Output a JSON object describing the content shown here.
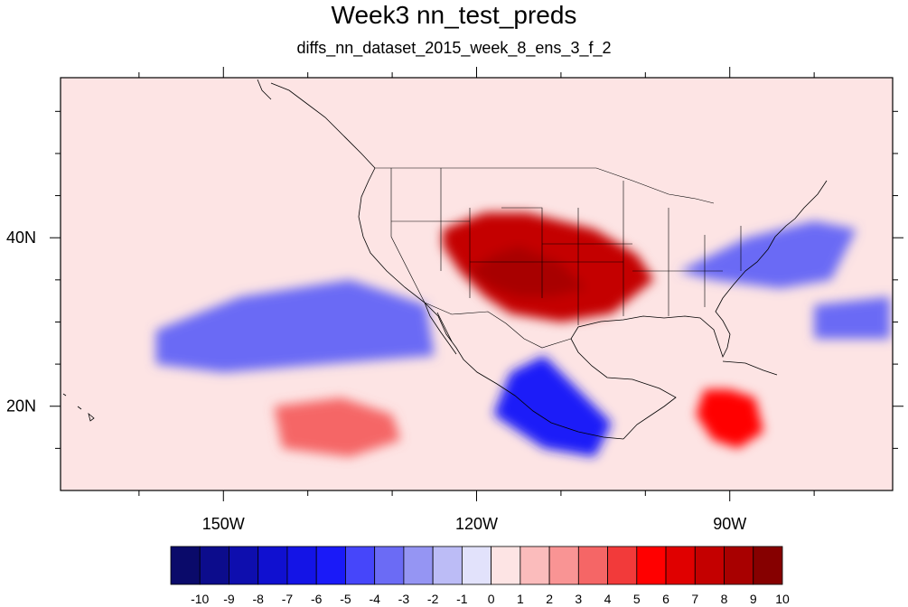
{
  "title": "Week3 nn_test_preds",
  "subtitle": "diffs_nn_dataset_2015_week_8_ens_3_f_2",
  "axes": {
    "lon_range": [
      -169.3,
      -70.7
    ],
    "lat_range": [
      10,
      59
    ],
    "x_ticks": [
      {
        "lon": -150,
        "label": "150W"
      },
      {
        "lon": -120,
        "label": "120W"
      },
      {
        "lon": -90,
        "label": "90W"
      }
    ],
    "y_ticks": [
      {
        "lat": 20,
        "label": "20N"
      },
      {
        "lat": 40,
        "label": "40N"
      }
    ]
  },
  "colorbar": {
    "labels": [
      "-10",
      "-9",
      "-8",
      "-7",
      "-6",
      "-5",
      "-4",
      "-3",
      "-2",
      "-1",
      "0",
      "1",
      "2",
      "3",
      "4",
      "5",
      "6",
      "7",
      "8",
      "9",
      "10"
    ],
    "colors": [
      "#0a0a6a",
      "#0c0c8c",
      "#0e0eae",
      "#1010d0",
      "#1414e6",
      "#1a1af8",
      "#4646fa",
      "#6b6bf5",
      "#9595f3",
      "#bcbcf6",
      "#e2e2fb",
      "#fde4e4",
      "#fbbcbc",
      "#f99494",
      "#f56666",
      "#f23a3a",
      "#ff0000",
      "#e00000",
      "#c40000",
      "#a80000",
      "#860000"
    ]
  },
  "background_color": "#fde4e4",
  "anomaly_regions": [
    {
      "name": "southwest-us-warm",
      "value": 8,
      "outline": [
        [
          -124,
          41
        ],
        [
          -119,
          43
        ],
        [
          -114,
          43
        ],
        [
          -106,
          41
        ],
        [
          -101,
          38
        ],
        [
          -99,
          35
        ],
        [
          -104,
          31
        ],
        [
          -110,
          30
        ],
        [
          -116,
          31
        ],
        [
          -119,
          33
        ],
        [
          -122,
          36
        ],
        [
          -124,
          39
        ]
      ]
    },
    {
      "name": "southwest-us-core",
      "value": 9,
      "outline": [
        [
          -121,
          36
        ],
        [
          -118,
          38
        ],
        [
          -115,
          39
        ],
        [
          -110,
          37
        ],
        [
          -107,
          34
        ],
        [
          -111,
          33
        ],
        [
          -115,
          33
        ],
        [
          -118,
          34
        ]
      ]
    },
    {
      "name": "southern-mexico-warm",
      "value": 6,
      "outline": [
        [
          -93,
          22
        ],
        [
          -90,
          22
        ],
        [
          -87,
          21
        ],
        [
          -86,
          17
        ],
        [
          -89,
          15
        ],
        [
          -92,
          16
        ],
        [
          -94,
          19
        ]
      ]
    },
    {
      "name": "central-pacific-warm",
      "value": 4,
      "outline": [
        [
          -144,
          20
        ],
        [
          -136,
          21
        ],
        [
          -130,
          19
        ],
        [
          -129,
          16
        ],
        [
          -135,
          14
        ],
        [
          -143,
          15
        ]
      ]
    },
    {
      "name": "eastern-us-cool",
      "value": -3,
      "outline": [
        [
          -96,
          36
        ],
        [
          -88,
          40
        ],
        [
          -80,
          42
        ],
        [
          -75,
          41
        ],
        [
          -78,
          35
        ],
        [
          -84,
          34
        ],
        [
          -92,
          35
        ]
      ]
    },
    {
      "name": "west-atlantic-cool",
      "value": -3,
      "outline": [
        [
          -80,
          32
        ],
        [
          -71,
          33
        ],
        [
          -71,
          28
        ],
        [
          -80,
          28
        ]
      ]
    },
    {
      "name": "subtropical-pacific-cool",
      "value": -3,
      "outline": [
        [
          -158,
          29
        ],
        [
          -148,
          33
        ],
        [
          -135,
          35
        ],
        [
          -126,
          32
        ],
        [
          -125,
          26
        ],
        [
          -138,
          25
        ],
        [
          -150,
          24
        ],
        [
          -158,
          25
        ]
      ]
    },
    {
      "name": "baja-offshore-cool",
      "value": -5,
      "outline": [
        [
          -116,
          24
        ],
        [
          -112,
          26
        ],
        [
          -108,
          22
        ],
        [
          -104,
          18
        ],
        [
          -106,
          14
        ],
        [
          -112,
          15
        ],
        [
          -118,
          19
        ]
      ]
    }
  ]
}
